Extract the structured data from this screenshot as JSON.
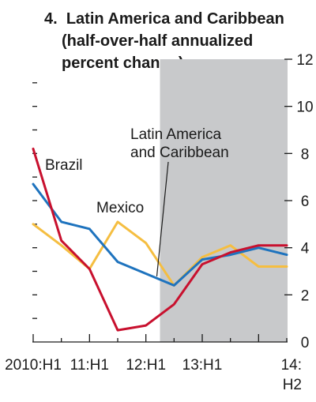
{
  "chart_data": {
    "type": "line",
    "title": {
      "number": "4.",
      "line1": "Latin America and Caribbean",
      "line2": "(half-over-half annualized",
      "line3": "percent change)"
    },
    "x": [
      "2010:H1",
      "2010:H2",
      "11:H1",
      "11:H2",
      "12:H1",
      "12:H2",
      "13:H1",
      "13:H2",
      "14:H1",
      "14:H2"
    ],
    "x_tick_labels": [
      "2010:H1",
      "11:H1",
      "12:H1",
      "13:H1",
      "14:",
      "H2"
    ],
    "ylim": [
      0,
      12
    ],
    "y_ticks": [
      0,
      2,
      4,
      6,
      8,
      10,
      12
    ],
    "y_axis_side": "right",
    "shaded_region": {
      "from": "12:H2",
      "to": "14:H2",
      "color": "#c8c9cb"
    },
    "series": [
      {
        "name": "Brazil",
        "color": "#c8102e",
        "values": [
          8.2,
          4.3,
          3.1,
          0.5,
          0.7,
          1.6,
          3.3,
          3.8,
          4.1,
          4.1
        ]
      },
      {
        "name": "Mexico",
        "color": "#f5be41",
        "values": [
          5.0,
          4.1,
          3.1,
          5.1,
          4.2,
          2.4,
          3.6,
          4.1,
          3.2,
          3.2
        ]
      },
      {
        "name": "Latin America and Caribbean",
        "color": "#1e73be",
        "values": [
          6.7,
          5.1,
          4.8,
          3.4,
          2.9,
          2.4,
          3.5,
          3.7,
          4.0,
          3.7
        ]
      }
    ],
    "annotations": [
      {
        "series": "Brazil",
        "text": "Brazil"
      },
      {
        "series": "Mexico",
        "text": "Mexico"
      },
      {
        "series": "Latin America and Caribbean",
        "lines": [
          "Latin America",
          "and Caribbean"
        ]
      }
    ],
    "grid": false,
    "legend": "none"
  }
}
